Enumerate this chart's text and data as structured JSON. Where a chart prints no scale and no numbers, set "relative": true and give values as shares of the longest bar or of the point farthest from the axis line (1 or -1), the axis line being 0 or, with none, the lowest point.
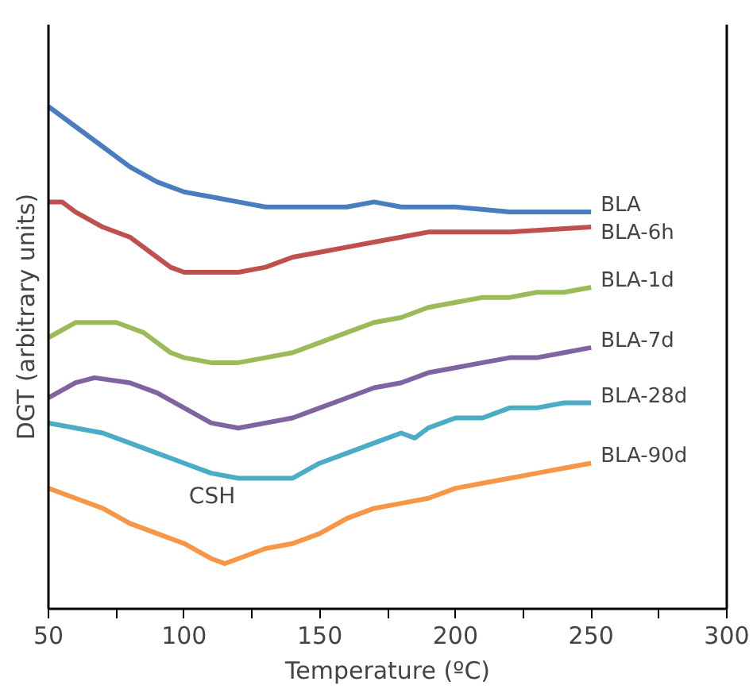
{
  "chart_data": {
    "type": "line",
    "relative": true,
    "xlabel": "Temperature (ºC)",
    "ylabel": "DGT (arbitrary units)",
    "xlim": [
      50,
      300
    ],
    "xticks": [
      50,
      {
        "value": 75,
        "label": null
      },
      100,
      {
        "value": 125,
        "label": null
      },
      150,
      {
        "value": 175,
        "label": null
      },
      200,
      {
        "value": 225,
        "label": null
      },
      250,
      {
        "value": 275,
        "label": null
      },
      300
    ],
    "grid": false,
    "marker": "none",
    "line_style": "solid",
    "annotations": [
      "CSH"
    ],
    "series": [
      {
        "name": "BLA",
        "color": "#4a7dc0",
        "x": [
          50,
          60,
          70,
          80,
          90,
          100,
          110,
          120,
          130,
          140,
          150,
          160,
          170,
          180,
          200,
          220,
          250
        ],
        "values": [
          1.0,
          0.96,
          0.92,
          0.88,
          0.85,
          0.83,
          0.82,
          0.81,
          0.8,
          0.8,
          0.8,
          0.8,
          0.81,
          0.8,
          0.8,
          0.79,
          0.79
        ]
      },
      {
        "name": "BLA-6h",
        "color": "#c0504d",
        "x": [
          50,
          55,
          60,
          70,
          80,
          90,
          95,
          100,
          110,
          120,
          130,
          140,
          150,
          160,
          170,
          180,
          190,
          200,
          220,
          250
        ],
        "values": [
          0.81,
          0.81,
          0.79,
          0.76,
          0.74,
          0.7,
          0.68,
          0.67,
          0.67,
          0.67,
          0.68,
          0.7,
          0.71,
          0.72,
          0.73,
          0.74,
          0.75,
          0.75,
          0.75,
          0.76
        ]
      },
      {
        "name": "BLA-1d",
        "color": "#9bbb59",
        "x": [
          50,
          60,
          65,
          75,
          85,
          95,
          100,
          110,
          120,
          130,
          140,
          150,
          160,
          170,
          180,
          190,
          200,
          210,
          220,
          230,
          240,
          250
        ],
        "values": [
          0.54,
          0.57,
          0.57,
          0.57,
          0.55,
          0.51,
          0.5,
          0.49,
          0.49,
          0.5,
          0.51,
          0.53,
          0.55,
          0.57,
          0.58,
          0.6,
          0.61,
          0.62,
          0.62,
          0.63,
          0.63,
          0.64
        ]
      },
      {
        "name": "BLA-7d",
        "color": "#8064a2",
        "x": [
          50,
          60,
          67,
          80,
          90,
          100,
          110,
          120,
          130,
          140,
          150,
          160,
          170,
          180,
          190,
          200,
          210,
          220,
          230,
          240,
          250
        ],
        "values": [
          0.42,
          0.45,
          0.46,
          0.45,
          0.43,
          0.4,
          0.37,
          0.36,
          0.37,
          0.38,
          0.4,
          0.42,
          0.44,
          0.45,
          0.47,
          0.48,
          0.49,
          0.5,
          0.5,
          0.51,
          0.52
        ]
      },
      {
        "name": "BLA-28d",
        "color": "#4bacc6",
        "x": [
          50,
          60,
          70,
          80,
          90,
          100,
          110,
          120,
          130,
          140,
          150,
          160,
          170,
          180,
          185,
          190,
          200,
          210,
          220,
          230,
          240,
          250
        ],
        "values": [
          0.37,
          0.36,
          0.35,
          0.33,
          0.31,
          0.29,
          0.27,
          0.26,
          0.26,
          0.26,
          0.29,
          0.31,
          0.33,
          0.35,
          0.34,
          0.36,
          0.38,
          0.38,
          0.4,
          0.4,
          0.41,
          0.41
        ]
      },
      {
        "name": "BLA-90d",
        "color": "#f79646",
        "x": [
          50,
          60,
          70,
          80,
          90,
          100,
          110,
          115,
          120,
          130,
          140,
          150,
          160,
          170,
          180,
          190,
          200,
          210,
          220,
          230,
          240,
          250
        ],
        "values": [
          0.24,
          0.22,
          0.2,
          0.17,
          0.15,
          0.13,
          0.1,
          0.09,
          0.1,
          0.12,
          0.13,
          0.15,
          0.18,
          0.2,
          0.21,
          0.22,
          0.24,
          0.25,
          0.26,
          0.27,
          0.28,
          0.29
        ]
      }
    ]
  }
}
